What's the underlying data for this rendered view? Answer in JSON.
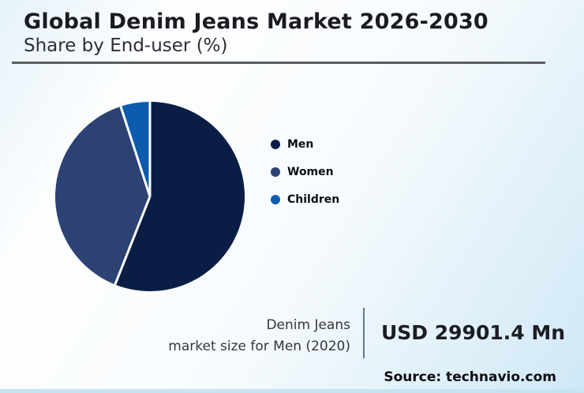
{
  "header": {
    "title": "Global Denim Jeans Market 2026-2030",
    "subtitle": "Share by End-user (%)"
  },
  "chart_data": {
    "type": "pie",
    "title": "Global Denim Jeans Market 2026-2030",
    "subtitle": "Share by End-user (%)",
    "unit": "percent",
    "direction": "clockwise",
    "start_angle_deg": 0,
    "legend_position": "right",
    "slices": [
      {
        "label": "Men",
        "value": 56,
        "color": "#0a1e45"
      },
      {
        "label": "Women",
        "value": 39,
        "color": "#2c4273"
      },
      {
        "label": "Children",
        "value": 5,
        "color": "#0b5cad"
      }
    ],
    "note": "Slice percentages estimated from arc angles; no numeric data labels are shown in the chart"
  },
  "annotation": {
    "line1": "Denim Jeans",
    "line2": "market size for Men (2020)",
    "value": "USD 29901.4 Mn"
  },
  "source": {
    "text": "Source: technavio.com"
  },
  "colors": {
    "background_top_left": "#e6f2f9",
    "background_white": "#fbfdff",
    "background_bottom_right": "#cfe8f6",
    "bottom_strip": "#c6e4f2",
    "title_text": "#1b1b22",
    "rule": "#5a5d60",
    "divider": "#64788f",
    "slice_separator": "#ffffff"
  }
}
